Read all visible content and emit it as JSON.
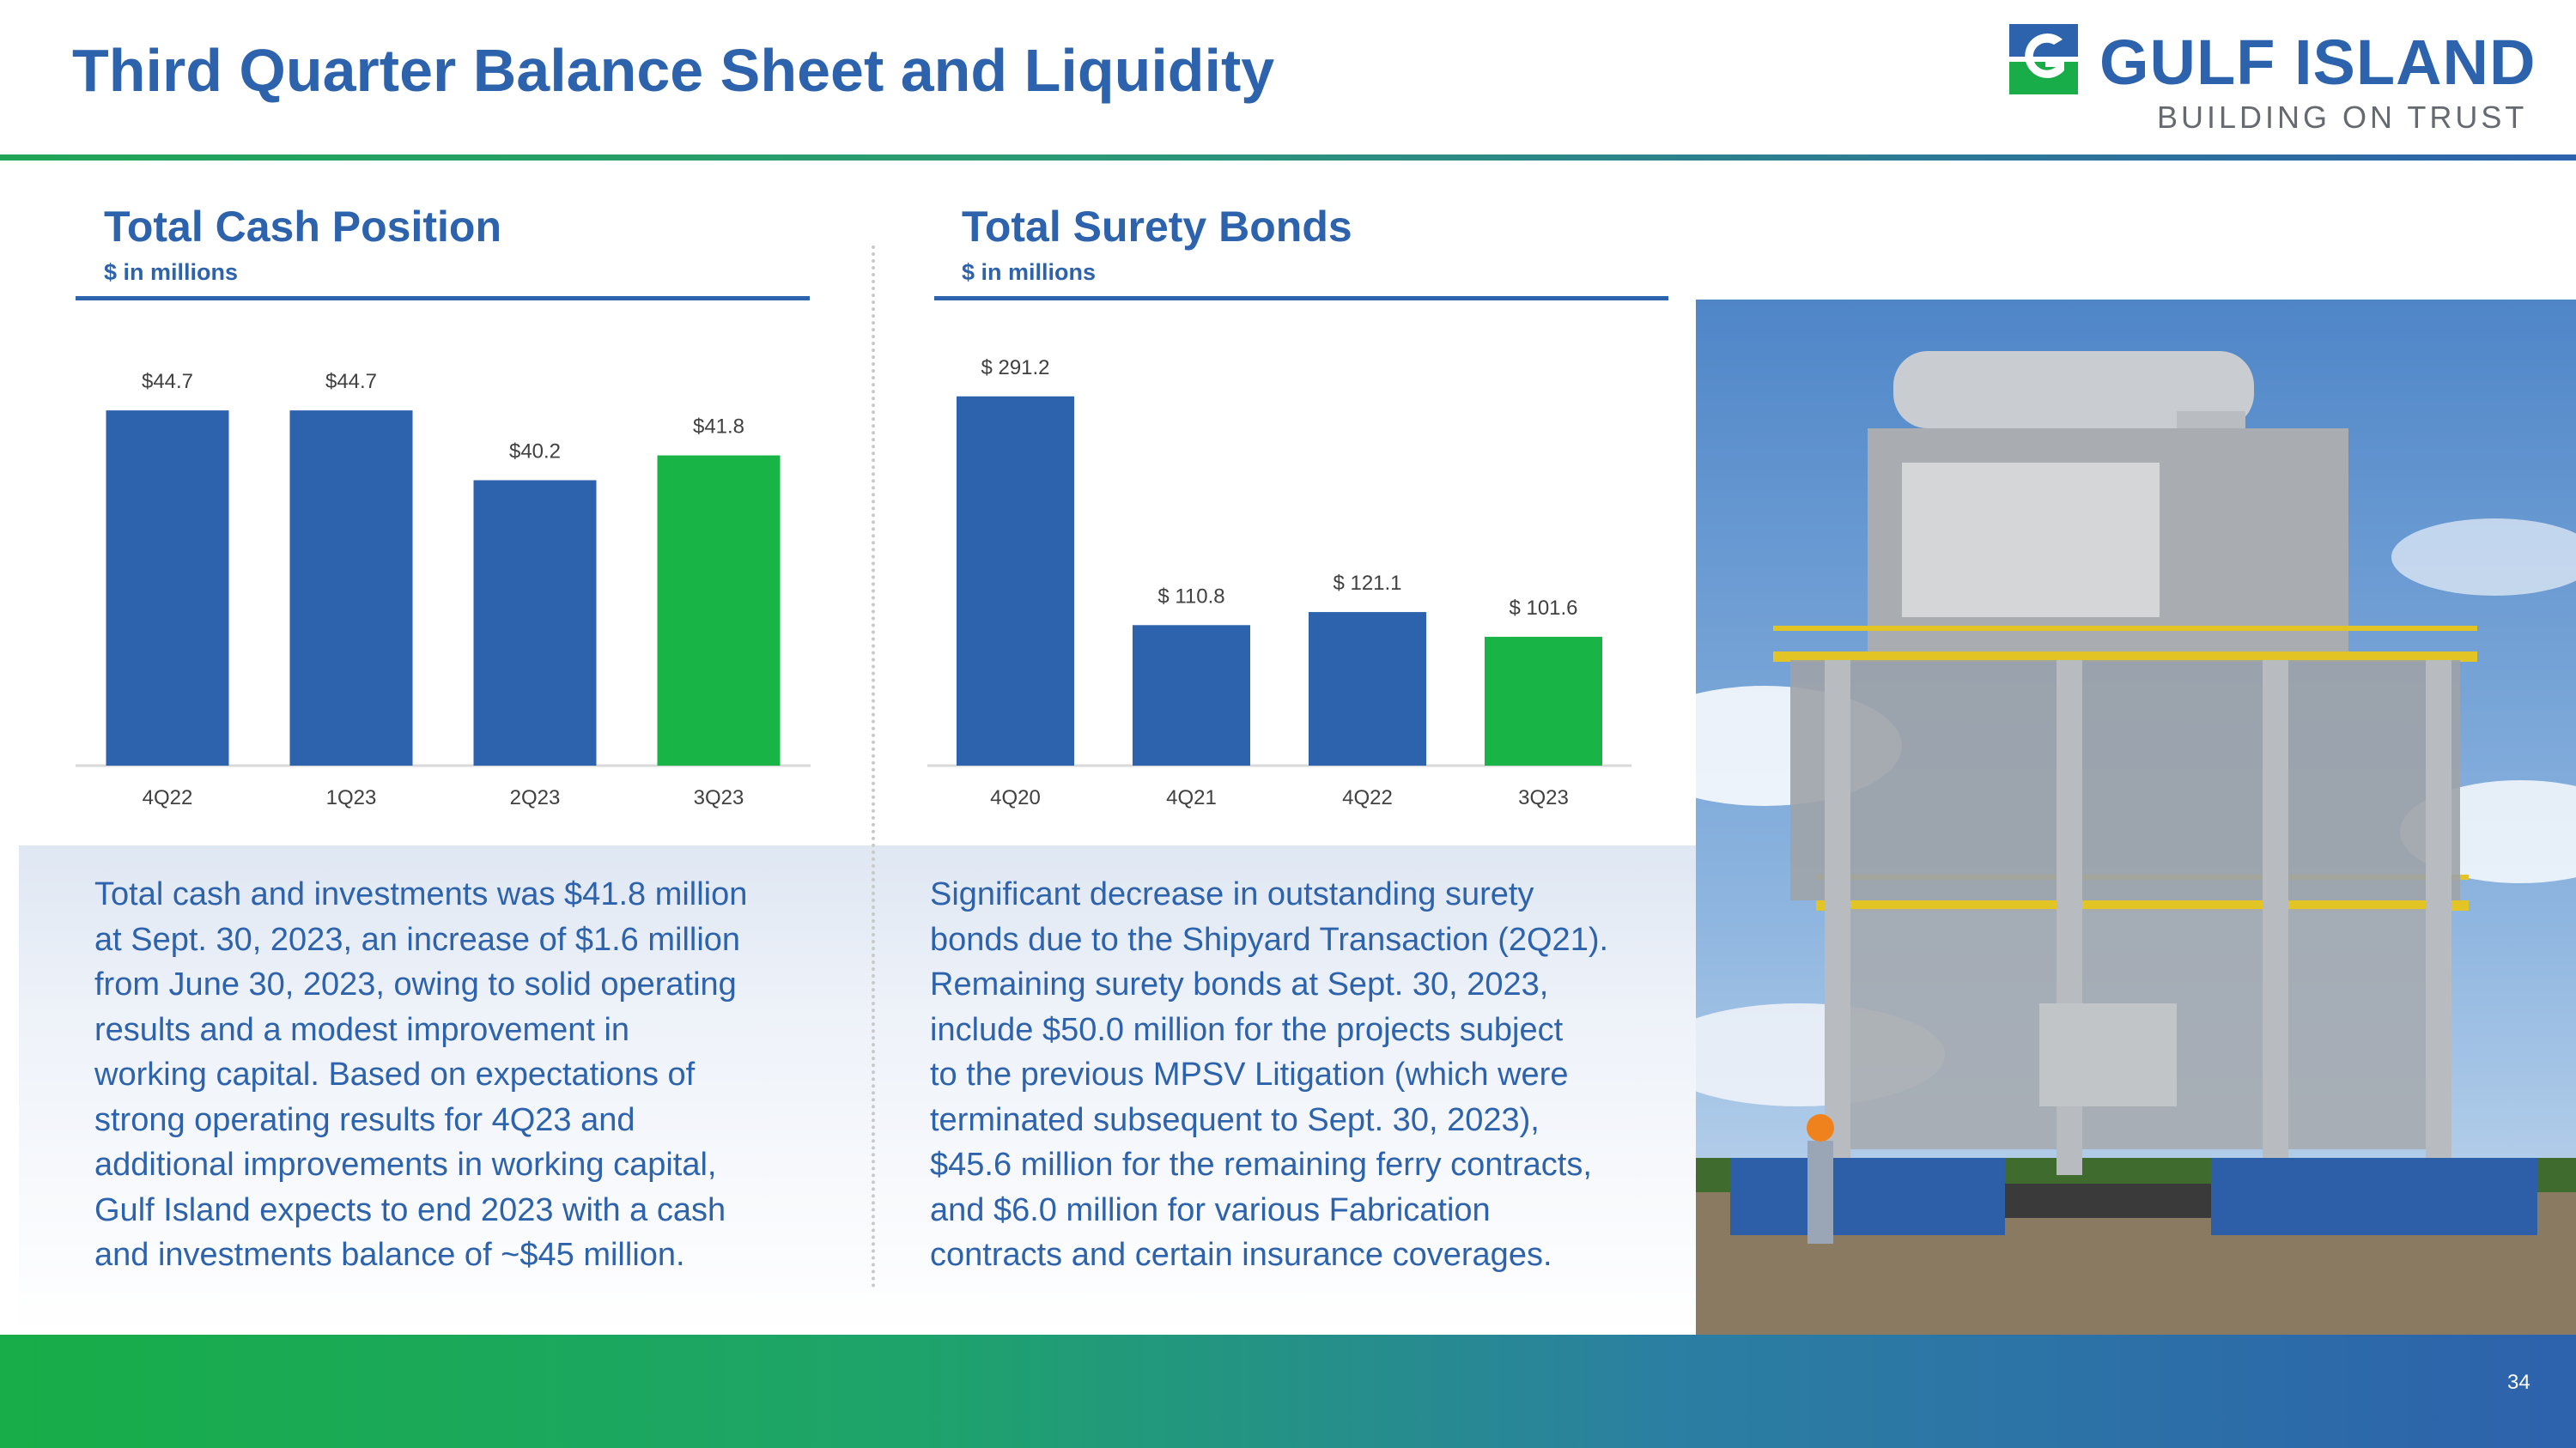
{
  "header": {
    "title": "Third Quarter Balance Sheet and Liquidity",
    "logo_name": "GULF ISLAND",
    "logo_tagline": "BUILDING ON TRUST"
  },
  "colors": {
    "primary_blue": "#2d62ac",
    "accent_green": "#18b446",
    "axis_gray": "#d9d9d9",
    "label_gray": "#404040"
  },
  "chart_data": [
    {
      "type": "bar",
      "title": "Total Cash Position",
      "subtitle": "$ in millions",
      "categories": [
        "4Q22",
        "1Q23",
        "2Q23",
        "3Q23"
      ],
      "values": [
        44.7,
        44.7,
        40.2,
        41.8
      ],
      "data_labels": [
        "$44.7",
        "$44.7",
        "$40.2",
        "$41.8"
      ],
      "highlight_index": 3,
      "ylim": [
        21.8,
        46.7
      ],
      "grid": false
    },
    {
      "type": "bar",
      "title": "Total Surety Bonds",
      "subtitle": "$ in millions",
      "categories": [
        "4Q20",
        "4Q21",
        "4Q22",
        "3Q23"
      ],
      "values": [
        291.2,
        110.8,
        121.1,
        101.6
      ],
      "data_labels": [
        "$ 291.2",
        "$ 110.8",
        "$ 121.1",
        "$ 101.6"
      ],
      "highlight_index": 3,
      "ylim": [
        0,
        310
      ],
      "grid": false
    }
  ],
  "commentary": {
    "cash": [
      "Total cash and investments was $41.8 million",
      "at Sept. 30, 2023, an increase of $1.6 million",
      "from June 30, 2023, owing to solid operating",
      "results and a modest improvement in",
      "working capital. Based on expectations of",
      "strong operating results for 4Q23 and",
      "additional improvements in working capital,",
      "Gulf Island expects to end 2023 with a cash",
      "and investments balance of ~$45 million."
    ],
    "surety": [
      "Significant decrease in outstanding surety",
      "bonds due to the Shipyard Transaction (2Q21).",
      "Remaining surety bonds at Sept. 30, 2023,",
      "include $50.0 million for the projects subject",
      "to the previous MPSV Litigation (which were",
      "terminated subsequent to Sept. 30, 2023),",
      "$45.6 million for the remaining ferry contracts,",
      "and $6.0 million for various Fabrication",
      "contracts and certain insurance coverages."
    ]
  },
  "footer": {
    "page_number": "34"
  }
}
